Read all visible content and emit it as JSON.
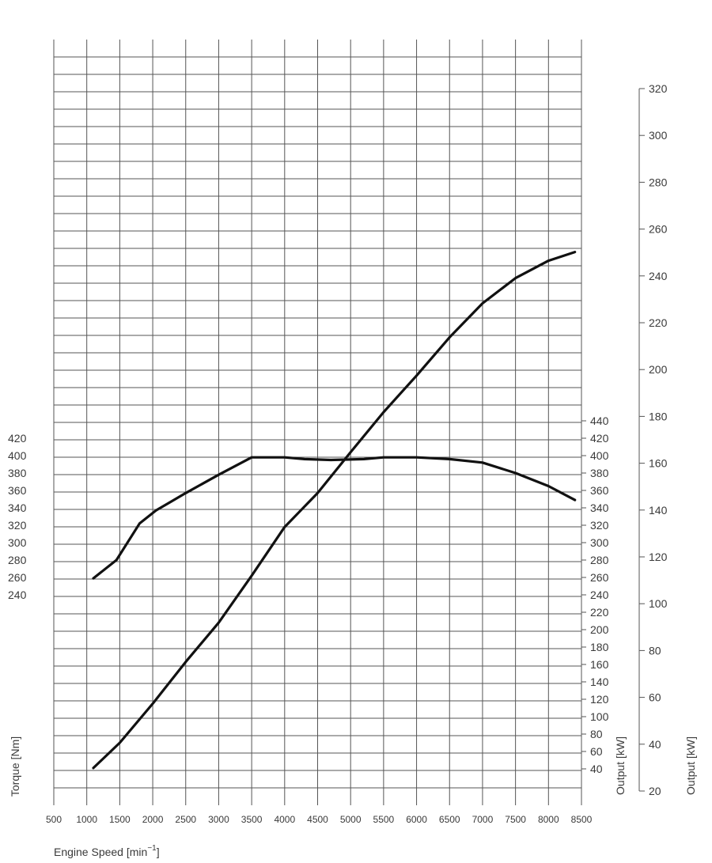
{
  "chart_data": {
    "type": "line",
    "x_axis": {
      "label": "Engine Speed [min",
      "label_superscript": "−1",
      "label_suffix": "]",
      "range": [
        500,
        8500
      ],
      "ticks": [
        "500",
        "1000",
        "1500",
        "2000",
        "2500",
        "3000",
        "3500",
        "4000",
        "4500",
        "5000",
        "5500",
        "6000",
        "6500",
        "7000",
        "7500",
        "8000",
        "8500"
      ]
    },
    "left_axis": {
      "label": "Torque [Nm]",
      "ticks": [
        "240",
        "260",
        "280",
        "300",
        "320",
        "340",
        "360",
        "380",
        "400",
        "420"
      ]
    },
    "right_axis_hp": {
      "label": "Output [kW]",
      "ticks": [
        "40",
        "60",
        "80",
        "100",
        "120",
        "140",
        "160",
        "180",
        "200",
        "220",
        "240",
        "260",
        "280",
        "300",
        "320",
        "340",
        "360",
        "380",
        "400",
        "420",
        "440"
      ]
    },
    "right_axis_kw": {
      "label": "Output [kW]",
      "ticks": [
        "20",
        "40",
        "60",
        "80",
        "100",
        "120",
        "140",
        "160",
        "180",
        "200",
        "220",
        "240",
        "260",
        "280",
        "300",
        "320"
      ]
    },
    "grid": true,
    "series": [
      {
        "axis": "torque",
        "x": [
          1100,
          1450,
          1800,
          2050,
          2500,
          3000,
          3500,
          4000,
          4300,
          4700,
          5200,
          5500,
          6000,
          6500,
          7000,
          7500,
          8000,
          8400
        ],
        "y": [
          259,
          280,
          322,
          337,
          357,
          378,
          398,
          398,
          396,
          395,
          396,
          398,
          398,
          396,
          392,
          380,
          365,
          349
        ]
      },
      {
        "axis": "power",
        "x": [
          1100,
          1500,
          2000,
          2500,
          3000,
          3500,
          4000,
          4500,
          5000,
          5500,
          6000,
          6500,
          7000,
          7500,
          8000,
          8400
        ],
        "y": [
          41,
          70,
          115,
          163,
          208,
          262,
          318,
          357,
          404,
          450,
          492,
          536,
          575,
          604,
          624,
          634
        ]
      }
    ]
  }
}
